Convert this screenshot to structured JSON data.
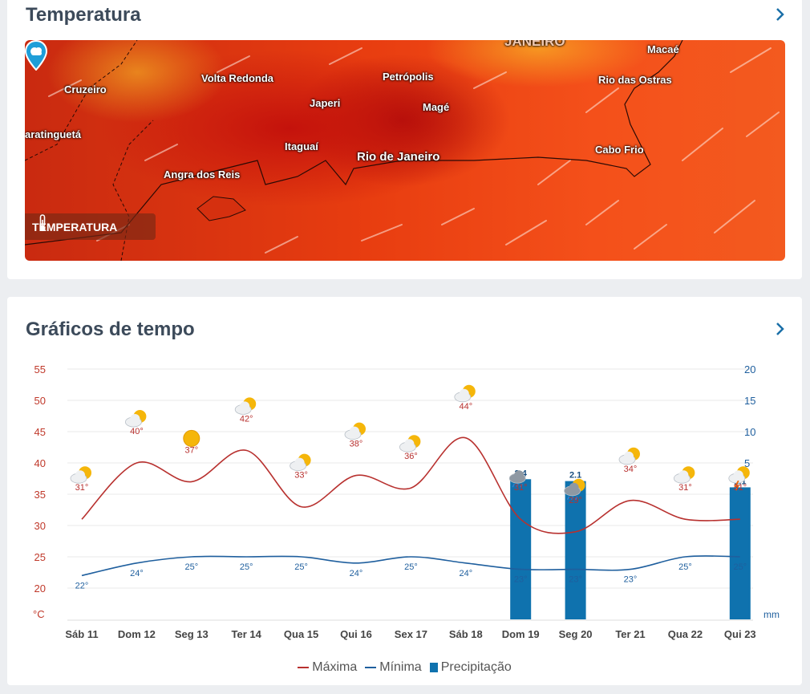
{
  "temperature_card": {
    "title": "Temperatura",
    "badge_label": "TEMPERATURA",
    "cities": [
      {
        "name": "JANEIRO"
      },
      {
        "name": "Macaé"
      },
      {
        "name": "Cruzeiro"
      },
      {
        "name": "Volta Redonda"
      },
      {
        "name": "Petrópolis"
      },
      {
        "name": "Rio das Ostras"
      },
      {
        "name": "Japeri"
      },
      {
        "name": "Magé"
      },
      {
        "name": "aratinguetá"
      },
      {
        "name": "Itaguaí"
      },
      {
        "name": "Rio de Janeiro"
      },
      {
        "name": "Cabo Frio"
      },
      {
        "name": "Angra dos Reis"
      }
    ]
  },
  "graph_card": {
    "title": "Gráficos de tempo",
    "left_unit": "°C",
    "right_unit": "mm"
  },
  "legend": {
    "max": "Máxima",
    "min": "Mínima",
    "precip": "Precipitação"
  },
  "colors": {
    "max": "#b8312f",
    "min": "#1f5f9e",
    "precip": "#0f72ae",
    "left_axis": "#c0392b",
    "right_axis": "#1f5f9e",
    "title": "#3c4a5a"
  },
  "chart_data": {
    "type": "line",
    "categories": [
      "Sáb 11",
      "Dom 12",
      "Seg 13",
      "Ter 14",
      "Qua 15",
      "Qui 16",
      "Sex 17",
      "Sáb 18",
      "Dom 19",
      "Seg 20",
      "Ter 21",
      "Qua 22",
      "Qui 23"
    ],
    "series": [
      {
        "name": "Máxima",
        "values": [
          31,
          40,
          37,
          42,
          33,
          38,
          36,
          44,
          31,
          29,
          34,
          31,
          31
        ],
        "labels": [
          "31°",
          "40°",
          "37°",
          "42°",
          "33°",
          "38°",
          "36°",
          "44°",
          "31°",
          "29°",
          "34°",
          "31°",
          "31°"
        ]
      },
      {
        "name": "Mínima",
        "values": [
          22,
          24,
          25,
          25,
          25,
          24,
          25,
          24,
          23,
          23,
          23,
          25,
          25
        ],
        "labels": [
          "22°",
          "24°",
          "25°",
          "25°",
          "25°",
          "24°",
          "25°",
          "24°",
          "23°",
          "23°",
          "23°",
          "25°",
          "25°"
        ]
      },
      {
        "name": "Precipitação",
        "values": [
          0,
          0,
          0,
          0,
          0,
          0,
          0,
          0,
          2.4,
          2.1,
          0,
          0,
          1.1
        ],
        "labels": [
          "",
          "",
          "",
          "",
          "",
          "",
          "",
          "",
          "2.4",
          "2.1",
          "",
          "",
          "1.1"
        ]
      }
    ],
    "weather_icons": [
      "partly-cloudy-icon",
      "partly-cloudy-icon",
      "sun-icon",
      "partly-cloudy-icon",
      "partly-cloudy-icon",
      "partly-cloudy-icon",
      "partly-cloudy-icon",
      "partly-cloudy-icon",
      "rain-cloud-icon",
      "sun-rain-icon",
      "partly-cloudy-icon",
      "partly-cloudy-icon",
      "storm-icon"
    ],
    "y_left": {
      "ticks": [
        "55",
        "50",
        "45",
        "40",
        "35",
        "30",
        "25",
        "20"
      ],
      "min": 17.5,
      "max": 55
    },
    "y_right": {
      "ticks": [
        "20",
        "15",
        "10",
        "5"
      ],
      "min": 0,
      "max": 20
    },
    "grid": true,
    "legend_position": "bottom-center"
  }
}
